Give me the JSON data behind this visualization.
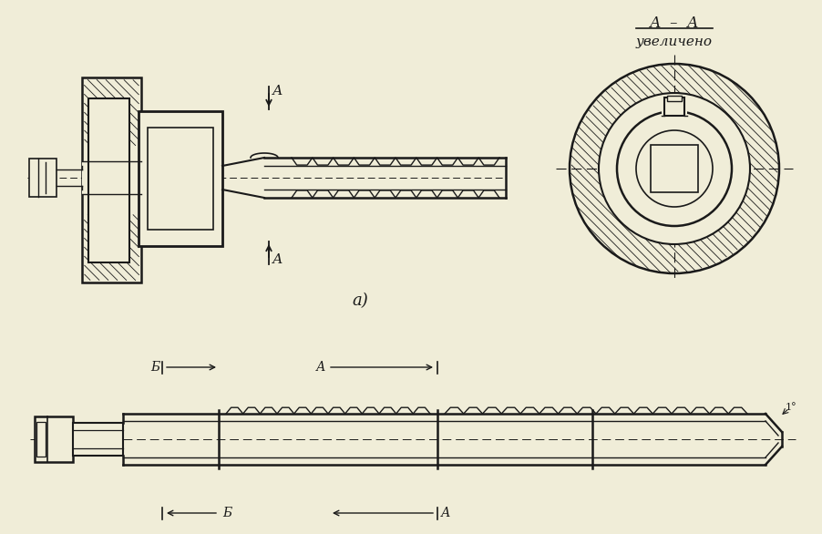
{
  "bg_color": "#f0edd8",
  "line_color": "#1a1a1a",
  "title_aa": "А  –  А",
  "title_uv": "увеличено",
  "label_a_section": "а)"
}
